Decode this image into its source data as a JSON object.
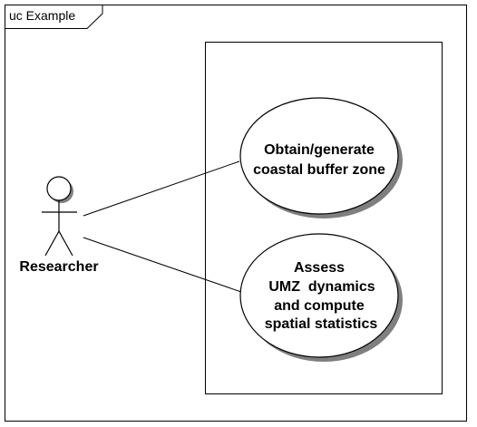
{
  "frame": {
    "title": "uc Example"
  },
  "actor": {
    "name": "Researcher"
  },
  "use_cases": [
    {
      "lines": [
        "Obtain/generate",
        "coastal buffer zone"
      ]
    },
    {
      "lines": [
        "Assess",
        "UMZ  dynamics",
        "and compute",
        "spatial statistics"
      ]
    }
  ],
  "colors": {
    "stroke": "#000000",
    "fill": "#ffffff",
    "shadow": "#7f7f7f"
  }
}
